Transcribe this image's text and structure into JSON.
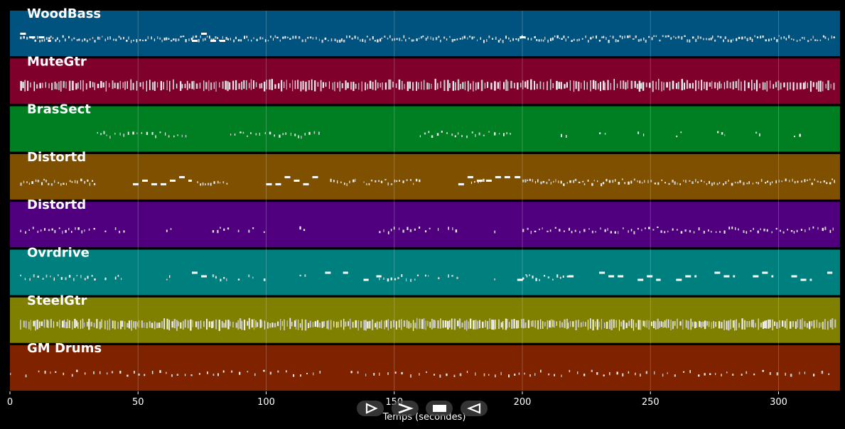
{
  "chart_data": {
    "type": "piano-roll",
    "xlabel": "Temps (secondes)",
    "xlim": [
      0,
      324
    ],
    "xticks": [
      0,
      50,
      100,
      150,
      200,
      250,
      300
    ],
    "grid": true,
    "tracks": [
      {
        "name": "WoodBass",
        "color": "#00527f",
        "density": 0.9,
        "segments": [
          [
            4,
            322
          ]
        ],
        "dashes": [
          [
            4,
            16
          ],
          [
            71,
            85
          ],
          [
            199,
            201
          ]
        ]
      },
      {
        "name": "MuteGtr",
        "color": "#7f002a",
        "density": 0.85,
        "segments": [
          [
            4,
            322
          ]
        ],
        "dashes": []
      },
      {
        "name": "BrasSect",
        "color": "#007f22",
        "density": 0.55,
        "segments": [
          [
            34,
            69
          ],
          [
            86,
            121
          ],
          [
            160,
            196
          ],
          [
            215,
            218
          ],
          [
            230,
            233
          ],
          [
            245,
            248
          ],
          [
            260,
            263
          ],
          [
            276,
            279
          ],
          [
            291,
            294
          ],
          [
            306,
            309
          ]
        ],
        "dashes": []
      },
      {
        "name": "Distortd",
        "color": "#7f5000",
        "density": 0.8,
        "segments": [
          [
            4,
            33
          ],
          [
            73,
            85
          ],
          [
            125,
            135
          ],
          [
            138,
            160
          ],
          [
            180,
            185
          ],
          [
            200,
            322
          ]
        ],
        "dashes": [
          [
            48,
            71
          ],
          [
            100,
            121
          ],
          [
            175,
            196
          ],
          [
            197,
            200
          ]
        ]
      },
      {
        "name": "Distortd",
        "color": "#50007f",
        "density": 0.6,
        "segments": [
          [
            4,
            33
          ],
          [
            37,
            38
          ],
          [
            41,
            45
          ],
          [
            61,
            63
          ],
          [
            79,
            86
          ],
          [
            89,
            90
          ],
          [
            93,
            95
          ],
          [
            99,
            100
          ],
          [
            113,
            115
          ],
          [
            144,
            160
          ],
          [
            162,
            164
          ],
          [
            167,
            168
          ],
          [
            171,
            175
          ],
          [
            189,
            190
          ],
          [
            200,
            322
          ]
        ],
        "dashes": []
      },
      {
        "name": "Ovrdrive",
        "color": "#007f7f",
        "density": 0.6,
        "segments": [
          [
            4,
            33
          ],
          [
            37,
            38
          ],
          [
            41,
            45
          ],
          [
            61,
            63
          ],
          [
            79,
            86
          ],
          [
            89,
            90
          ],
          [
            93,
            95
          ],
          [
            99,
            100
          ],
          [
            113,
            115
          ],
          [
            144,
            160
          ],
          [
            162,
            164
          ],
          [
            167,
            168
          ],
          [
            171,
            175
          ],
          [
            189,
            190
          ],
          [
            200,
            218
          ]
        ],
        "dashes": [
          [
            71,
            78
          ],
          [
            123,
            126
          ],
          [
            130,
            132
          ],
          [
            138,
            140
          ],
          [
            143,
            145
          ],
          [
            198,
            202
          ],
          [
            218,
            220
          ],
          [
            230,
            240
          ],
          [
            245,
            254
          ],
          [
            260,
            268
          ],
          [
            275,
            283
          ],
          [
            290,
            298
          ],
          [
            305,
            313
          ],
          [
            319,
            321
          ]
        ]
      },
      {
        "name": "SteelGtr",
        "color": "#7f7f00",
        "density": 1.0,
        "segments": [
          [
            4,
            322
          ]
        ],
        "dashes": []
      },
      {
        "name": "GM Drums",
        "color": "#7f2200",
        "density": 0.35,
        "segments": [
          [
            0,
            2
          ],
          [
            6,
            7
          ],
          [
            11,
            121
          ],
          [
            133,
            322
          ]
        ],
        "dashes": []
      }
    ]
  },
  "player": {
    "play_icon": "play-icon",
    "forward_icon": "fast-forward-icon",
    "stop_icon": "stop-icon",
    "rewind_icon": "rewind-icon"
  }
}
